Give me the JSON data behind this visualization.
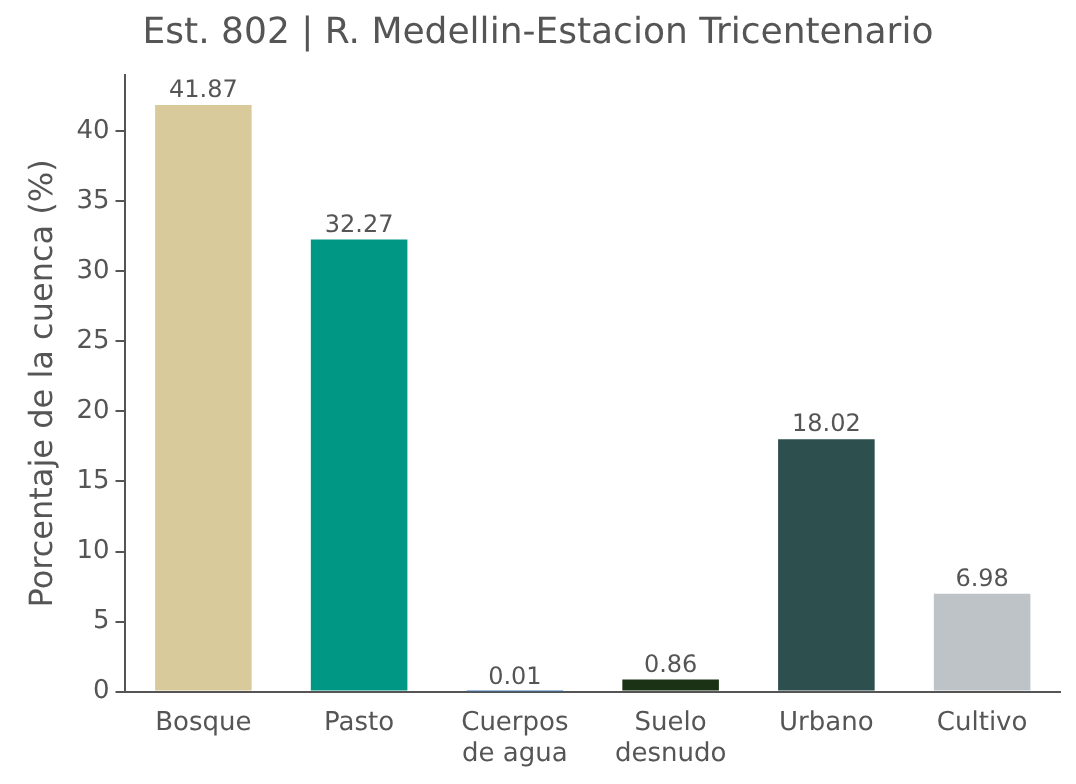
{
  "chart_data": {
    "type": "bar",
    "title": "Est. 802 | R. Medellin-Estacion Tricentenario",
    "ylabel": "Porcentaje de la cuenca (%)",
    "categories": [
      "Bosque",
      "Pasto",
      "Cuerpos\nde agua",
      "Suelo\ndesnudo",
      "Urbano",
      "Cultivo"
    ],
    "values": [
      41.87,
      32.27,
      0.01,
      0.86,
      18.02,
      6.98
    ],
    "colors": [
      "#d9ca9c",
      "#009784",
      "#3a7fc1",
      "#1b3314",
      "#2d4f4e",
      "#bec3c7"
    ],
    "ylim": [
      0,
      44
    ],
    "yticks": [
      0,
      5,
      10,
      15,
      20,
      25,
      30,
      35,
      40
    ],
    "data_labels": true,
    "grid": false,
    "legend": false
  }
}
